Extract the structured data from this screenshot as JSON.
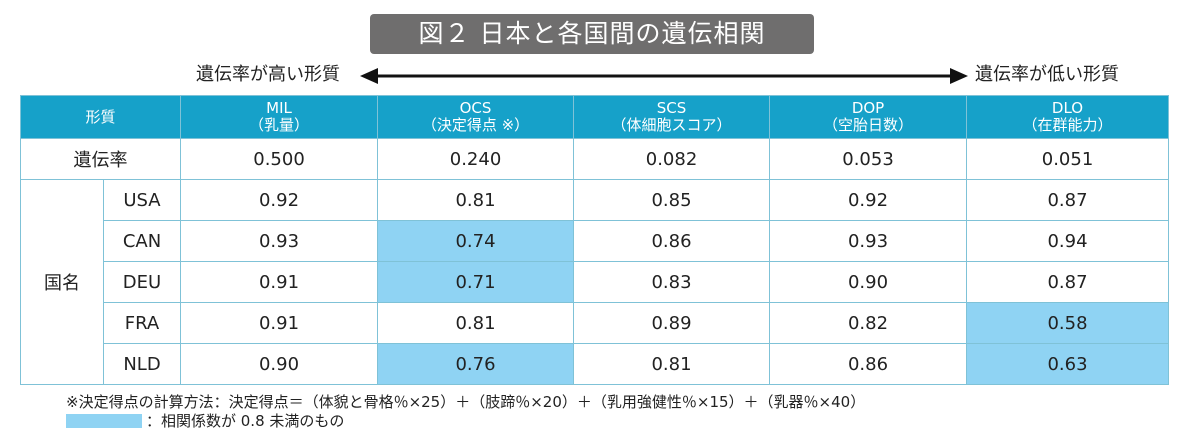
{
  "title": "図２ 日本と各国間の遺伝相関",
  "arrow": {
    "left_label": "遺伝率が高い形質",
    "right_label": "遺伝率が低い形質"
  },
  "table": {
    "trait_header": "形質",
    "columns": [
      {
        "name": "MIL",
        "sub": "（乳量）"
      },
      {
        "name": "OCS",
        "sub": "（決定得点 ※）"
      },
      {
        "name": "SCS",
        "sub": "（体細胞スコア）"
      },
      {
        "name": "DOP",
        "sub": "（空胎日数）"
      },
      {
        "name": "DLO",
        "sub": "（在群能力）"
      }
    ],
    "heritability_label": "遺伝率",
    "heritability": [
      "0.500",
      "0.240",
      "0.082",
      "0.053",
      "0.051"
    ],
    "country_label": "国名",
    "rows": [
      {
        "country": "USA",
        "values": [
          "0.92",
          "0.81",
          "0.85",
          "0.92",
          "0.87"
        ]
      },
      {
        "country": "CAN",
        "values": [
          "0.93",
          "0.74",
          "0.86",
          "0.93",
          "0.94"
        ]
      },
      {
        "country": "DEU",
        "values": [
          "0.91",
          "0.71",
          "0.83",
          "0.90",
          "0.87"
        ]
      },
      {
        "country": "FRA",
        "values": [
          "0.91",
          "0.81",
          "0.89",
          "0.82",
          "0.58"
        ]
      },
      {
        "country": "NLD",
        "values": [
          "0.90",
          "0.76",
          "0.81",
          "0.86",
          "0.63"
        ]
      }
    ],
    "highlight_color": "#8fd3f3",
    "header_color": "#16a1c9"
  },
  "notes": {
    "formula": "※決定得点の計算方法：決定得点＝（体貌と骨格％×25）＋（肢蹄％×20）＋（乳用強健性％×15）＋（乳器％×40）",
    "legend": "：相関係数が 0.8 未満のもの"
  }
}
